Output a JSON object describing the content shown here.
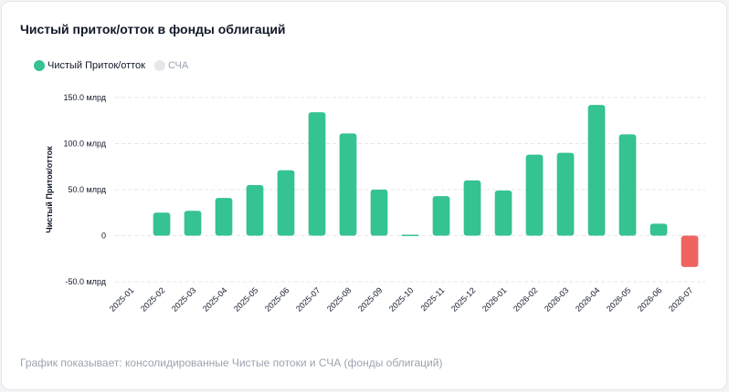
{
  "card": {
    "title": "Чистый приток/отток в фонды облигаций"
  },
  "legend": [
    {
      "label": "Чистый Приток/отток",
      "color": "#34c391",
      "active": true
    },
    {
      "label": "СЧА",
      "color": "#e5e7eb",
      "active": false
    }
  ],
  "footer": {
    "text": "График показывает: консолидированные Чистые потоки и СЧА (фонды облигаций)"
  },
  "colors": {
    "positive": "#34c391",
    "negative": "#ef6461",
    "grid": "#e5e7eb",
    "text": "#111827"
  },
  "chart_data": {
    "type": "bar",
    "ylabel": "Чистый Приток/отток",
    "xlabel": "",
    "ylim": [
      -50,
      150
    ],
    "y_ticks": [
      {
        "value": 150,
        "label": "150.0 млрд"
      },
      {
        "value": 100,
        "label": "100.0 млрд"
      },
      {
        "value": 50,
        "label": "50.0 млрд"
      },
      {
        "value": 0,
        "label": "0"
      },
      {
        "value": -50,
        "label": "-50.0 млрд"
      }
    ],
    "grid": true,
    "legend_position": "top-left",
    "categories": [
      "2025-01",
      "2025-02",
      "2025-03",
      "2025-04",
      "2025-05",
      "2025-06",
      "2025-07",
      "2025-08",
      "2025-09",
      "2025-10",
      "2025-11",
      "2025-12",
      "2026-01",
      "2026-02",
      "2026-03",
      "2026-04",
      "2026-05",
      "2026-06",
      "2026-07"
    ],
    "series": [
      {
        "name": "Чистый Приток/отток",
        "values": [
          0,
          25,
          27,
          41,
          55,
          71,
          134,
          111,
          50,
          1,
          43,
          60,
          49,
          88,
          90,
          142,
          110,
          13,
          -34
        ]
      }
    ]
  }
}
